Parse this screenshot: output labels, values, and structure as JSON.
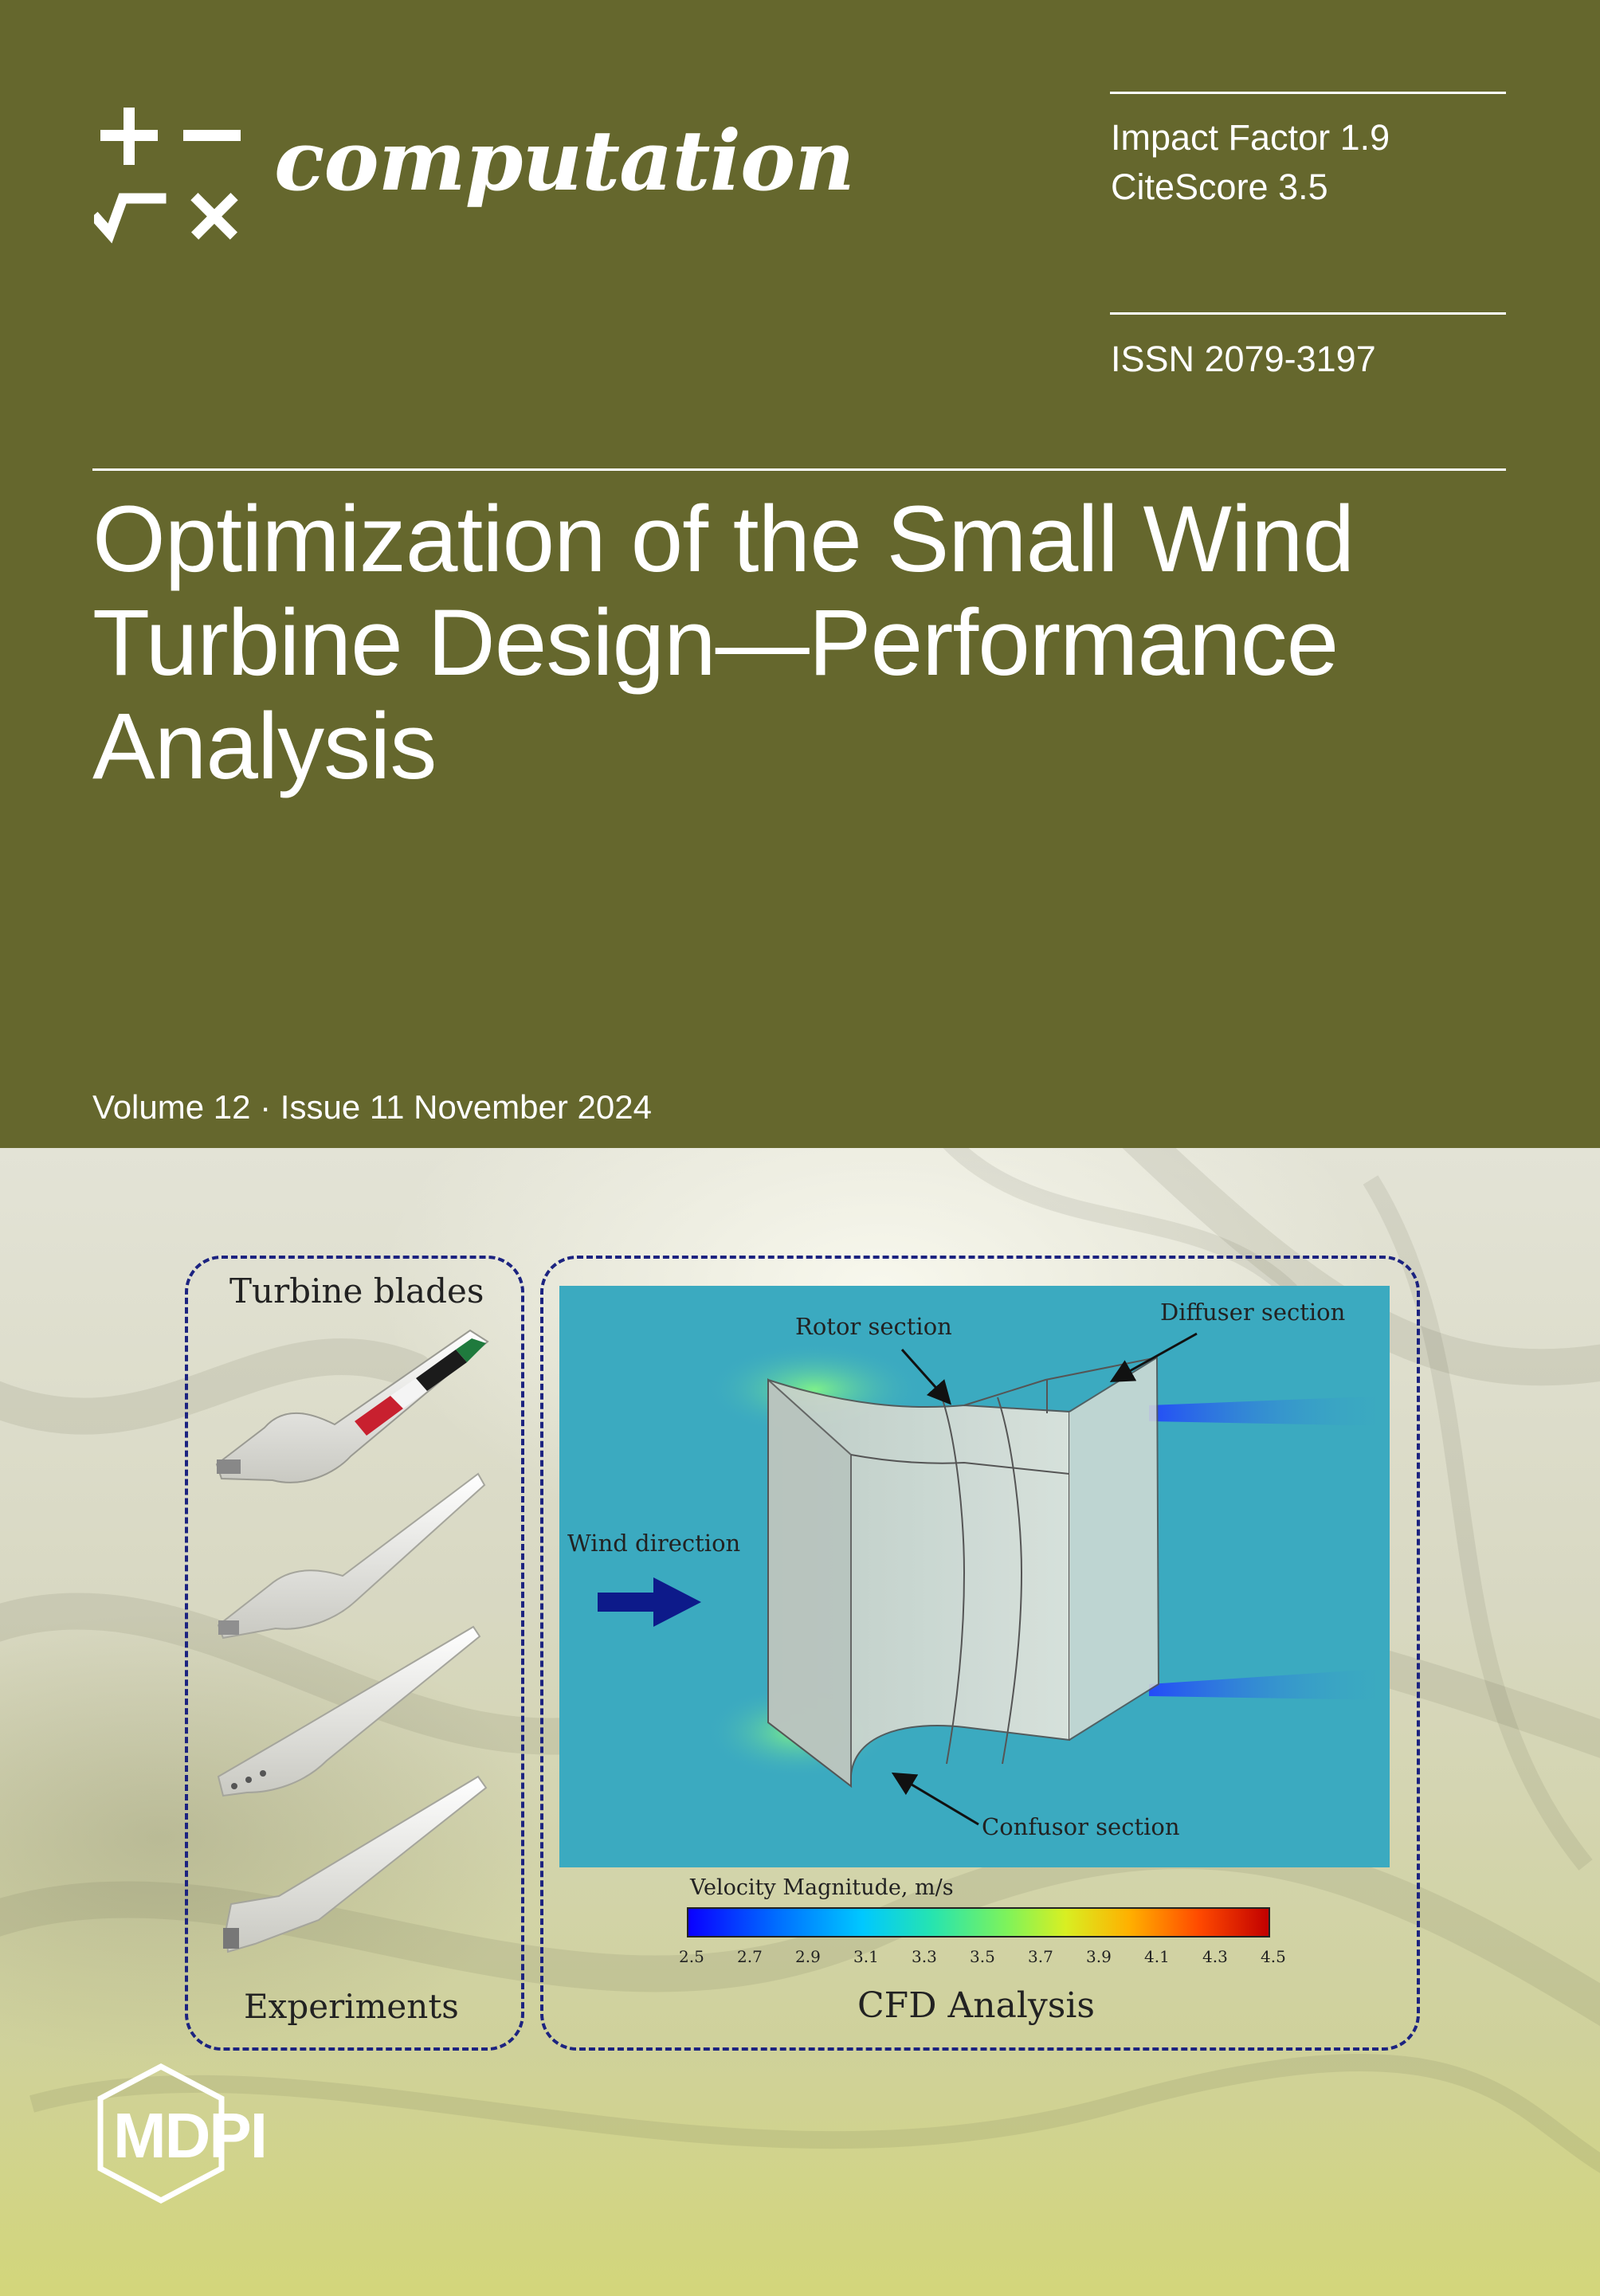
{
  "journal": {
    "name": "computation",
    "impact_factor": "Impact Factor 1.9",
    "citescore": "CiteScore 3.5",
    "issn": "ISSN 2079-3197"
  },
  "article": {
    "title_lines": [
      "Optimization of the Small Wind",
      "Turbine Design—Performance",
      "Analysis"
    ]
  },
  "issue": {
    "volume_line": "Volume 12 · Issue 11 November 2024"
  },
  "figure": {
    "left_panel": {
      "top_label": "Turbine blades",
      "bottom_label": "Experiments"
    },
    "right_panel": {
      "rotor_label": "Rotor section",
      "diffuser_label": "Diffuser section",
      "wind_label": "Wind direction",
      "confusor_label": "Confusor section",
      "bottom_label": "CFD Analysis"
    },
    "colorbar": {
      "label": "Velocity Magnitude, m/s",
      "ticks": [
        "2.5",
        "2.7",
        "2.9",
        "3.1",
        "3.3",
        "3.5",
        "3.7",
        "3.9",
        "4.1",
        "4.3",
        "4.5"
      ]
    }
  },
  "publisher": {
    "name": "MDPI"
  },
  "colors": {
    "header_olive": "#65672d",
    "dashed_border": "#1c2380",
    "cfd_background": "#3aa6c6"
  },
  "icons": [
    "plus-icon",
    "minus-icon",
    "check-icon",
    "times-icon",
    "hexagon-logo"
  ]
}
